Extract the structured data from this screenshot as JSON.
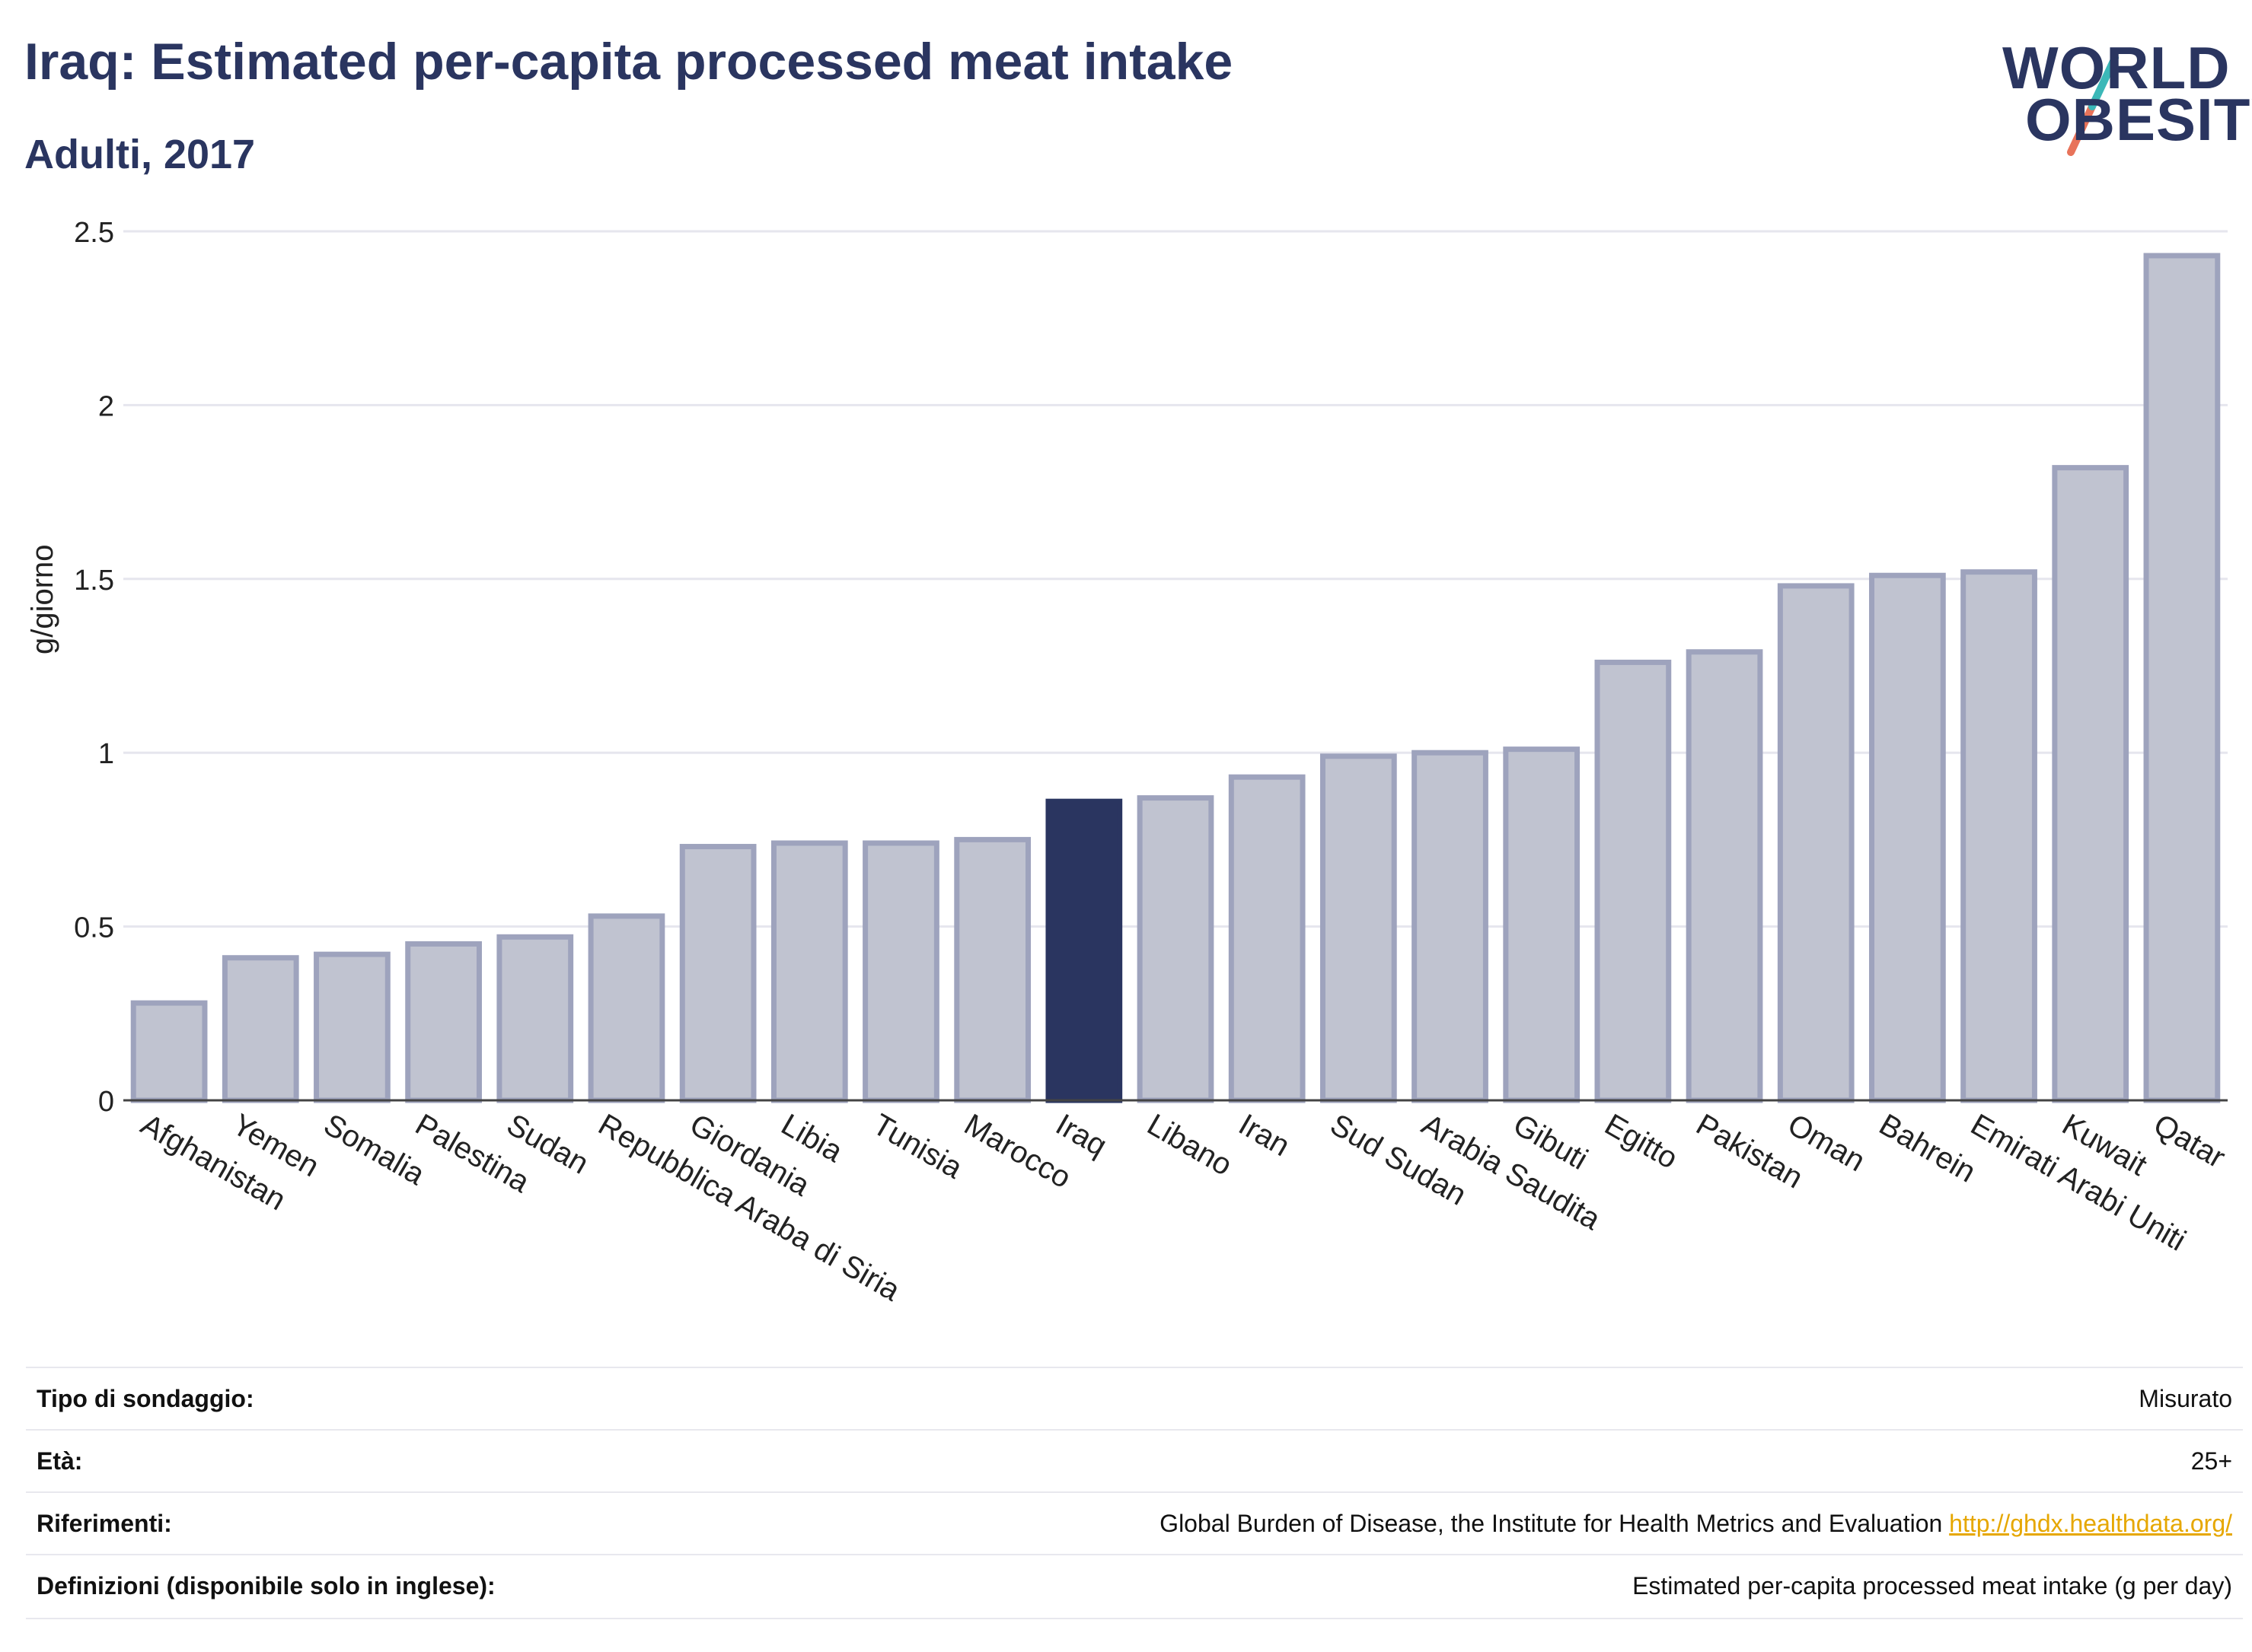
{
  "title": "Iraq: Estimated per-capita processed meat intake",
  "subtitle": "Adulti, 2017",
  "logo": {
    "line1": "WORLD",
    "line2": "OBESITY"
  },
  "colors": {
    "highlight": "#2a3560",
    "bar": "#c0c3d0",
    "bar_border": "#9ea3bd",
    "grid": "#e6e6ee"
  },
  "chart_data": {
    "type": "bar",
    "ylabel": "g/giorno",
    "ylim": [
      0,
      2.5
    ],
    "yticks": [
      "0",
      "0.5",
      "1",
      "1.5",
      "2",
      "2.5"
    ],
    "highlight": "Iraq",
    "categories": [
      "Afghanistan",
      "Yemen",
      "Somalia",
      "Palestina",
      "Sudan",
      "Repubblica Araba di Siria",
      "Giordania",
      "Libia",
      "Tunisia",
      "Marocco",
      "Iraq",
      "Libano",
      "Iran",
      "Sud Sudan",
      "Arabia Saudita",
      "Gibuti",
      "Egitto",
      "Pakistan",
      "Oman",
      "Bahrein",
      "Emirati Arabi Uniti",
      "Kuwait",
      "Qatar"
    ],
    "values": [
      0.28,
      0.41,
      0.42,
      0.45,
      0.47,
      0.53,
      0.73,
      0.74,
      0.74,
      0.75,
      0.86,
      0.87,
      0.93,
      0.99,
      1.0,
      1.01,
      1.26,
      1.29,
      1.48,
      1.51,
      1.52,
      1.82,
      2.43
    ]
  },
  "meta": [
    {
      "label": "Tipo di sondaggio:",
      "value": "Misurato"
    },
    {
      "label": "Età:",
      "value": "25+"
    },
    {
      "label": "Riferimenti:",
      "value": "Global Burden of Disease, the Institute for Health Metrics and Evaluation ",
      "link": "http://ghdx.healthdata.org/"
    },
    {
      "label": "Definizioni (disponibile solo in inglese):",
      "value": "Estimated per-capita processed meat intake (g per day)"
    }
  ]
}
